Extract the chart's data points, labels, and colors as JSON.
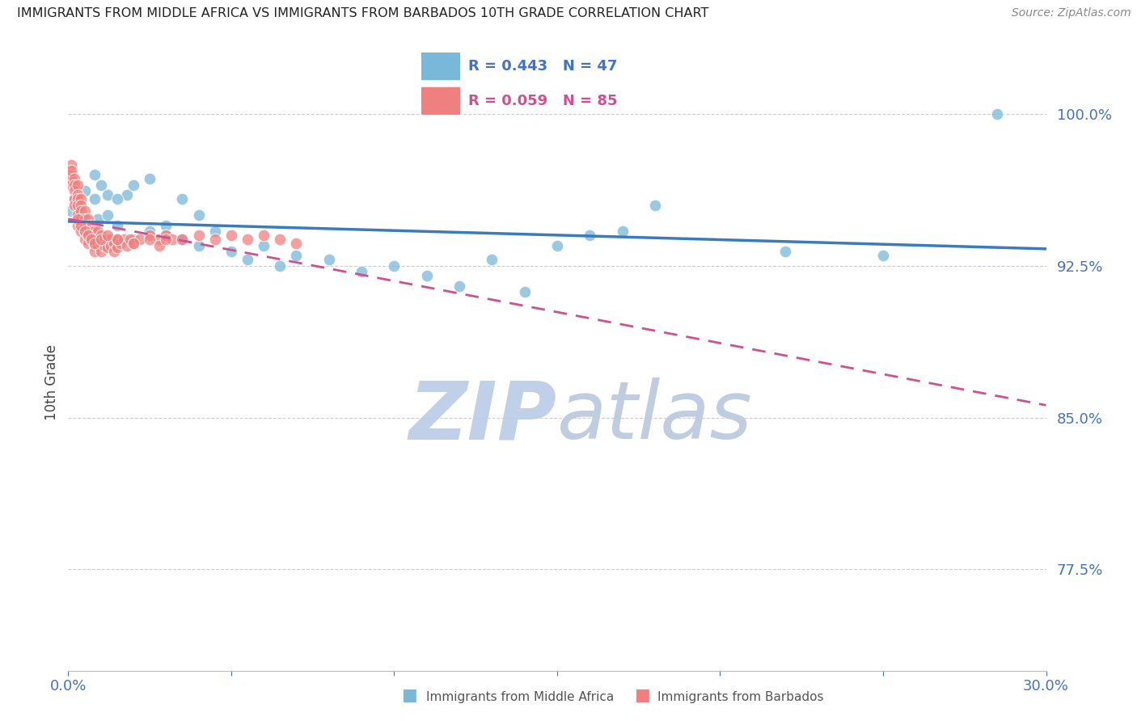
{
  "title": "IMMIGRANTS FROM MIDDLE AFRICA VS IMMIGRANTS FROM BARBADOS 10TH GRADE CORRELATION CHART",
  "source": "Source: ZipAtlas.com",
  "ylabel": "10th Grade",
  "xlim": [
    0.0,
    0.3
  ],
  "ylim": [
    0.725,
    1.01
  ],
  "yticks": [
    0.775,
    0.85,
    0.925,
    1.0
  ],
  "ytick_labels": [
    "77.5%",
    "85.0%",
    "92.5%",
    "100.0%"
  ],
  "blue_R": 0.443,
  "blue_N": 47,
  "pink_R": 0.059,
  "pink_N": 85,
  "legend_label_blue": "Immigrants from Middle Africa",
  "legend_label_pink": "Immigrants from Barbados",
  "blue_color": "#7ab8d9",
  "pink_color": "#f08080",
  "blue_line_color": "#3a7bbf",
  "pink_line_color": "#d05090",
  "axis_color": "#4472c4",
  "title_color": "#222222",
  "watermark_zip_color": "#c0d0e8",
  "watermark_atlas_color": "#c0cce0",
  "grid_color": "#cccccc",
  "bottom_spine_color": "#bbbbbb"
}
